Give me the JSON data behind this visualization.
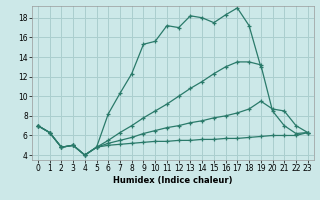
{
  "background_color": "#cce8e8",
  "grid_color": "#aacece",
  "line_color": "#2a7a6a",
  "xlabel": "Humidex (Indice chaleur)",
  "xlim": [
    -0.5,
    23.5
  ],
  "ylim": [
    3.5,
    19.2
  ],
  "yticks": [
    4,
    6,
    8,
    10,
    12,
    14,
    16,
    18
  ],
  "xticks": [
    0,
    1,
    2,
    3,
    4,
    5,
    6,
    7,
    8,
    9,
    10,
    11,
    12,
    13,
    14,
    15,
    16,
    17,
    18,
    19,
    20,
    21,
    22,
    23
  ],
  "lines": [
    {
      "x": [
        0,
        1,
        2,
        3,
        4,
        5,
        6,
        7,
        8,
        9,
        10,
        11,
        12,
        13,
        14,
        15,
        16,
        17,
        18,
        19
      ],
      "y": [
        7.0,
        6.3,
        4.8,
        5.0,
        4.0,
        4.8,
        8.2,
        10.3,
        12.3,
        15.3,
        15.6,
        17.2,
        17.0,
        18.2,
        18.0,
        17.5,
        18.3,
        19.0,
        17.2,
        13.0
      ]
    },
    {
      "x": [
        0,
        1,
        2,
        3,
        4,
        5,
        6,
        7,
        8,
        9,
        10,
        11,
        12,
        13,
        14,
        15,
        16,
        17,
        18,
        19,
        20,
        21,
        22,
        23
      ],
      "y": [
        7.0,
        6.3,
        4.8,
        5.0,
        4.0,
        4.8,
        5.5,
        6.3,
        7.0,
        7.8,
        8.5,
        9.2,
        10.0,
        10.8,
        11.5,
        12.3,
        13.0,
        13.5,
        13.5,
        13.2,
        8.5,
        7.0,
        6.2,
        6.3
      ]
    },
    {
      "x": [
        0,
        1,
        2,
        3,
        4,
        5,
        6,
        7,
        8,
        9,
        10,
        11,
        12,
        13,
        14,
        15,
        16,
        17,
        18,
        19,
        20,
        21,
        22,
        23
      ],
      "y": [
        7.0,
        6.3,
        4.8,
        5.0,
        4.0,
        4.8,
        5.2,
        5.5,
        5.8,
        6.2,
        6.5,
        6.8,
        7.0,
        7.3,
        7.5,
        7.8,
        8.0,
        8.3,
        8.7,
        9.5,
        8.7,
        8.5,
        7.0,
        6.3
      ]
    },
    {
      "x": [
        0,
        1,
        2,
        3,
        4,
        5,
        6,
        7,
        8,
        9,
        10,
        11,
        12,
        13,
        14,
        15,
        16,
        17,
        18,
        19,
        20,
        21,
        22,
        23
      ],
      "y": [
        7.0,
        6.3,
        4.8,
        5.0,
        4.0,
        4.8,
        5.0,
        5.1,
        5.2,
        5.3,
        5.4,
        5.4,
        5.5,
        5.5,
        5.6,
        5.6,
        5.7,
        5.7,
        5.8,
        5.9,
        6.0,
        6.0,
        6.0,
        6.3
      ]
    }
  ]
}
